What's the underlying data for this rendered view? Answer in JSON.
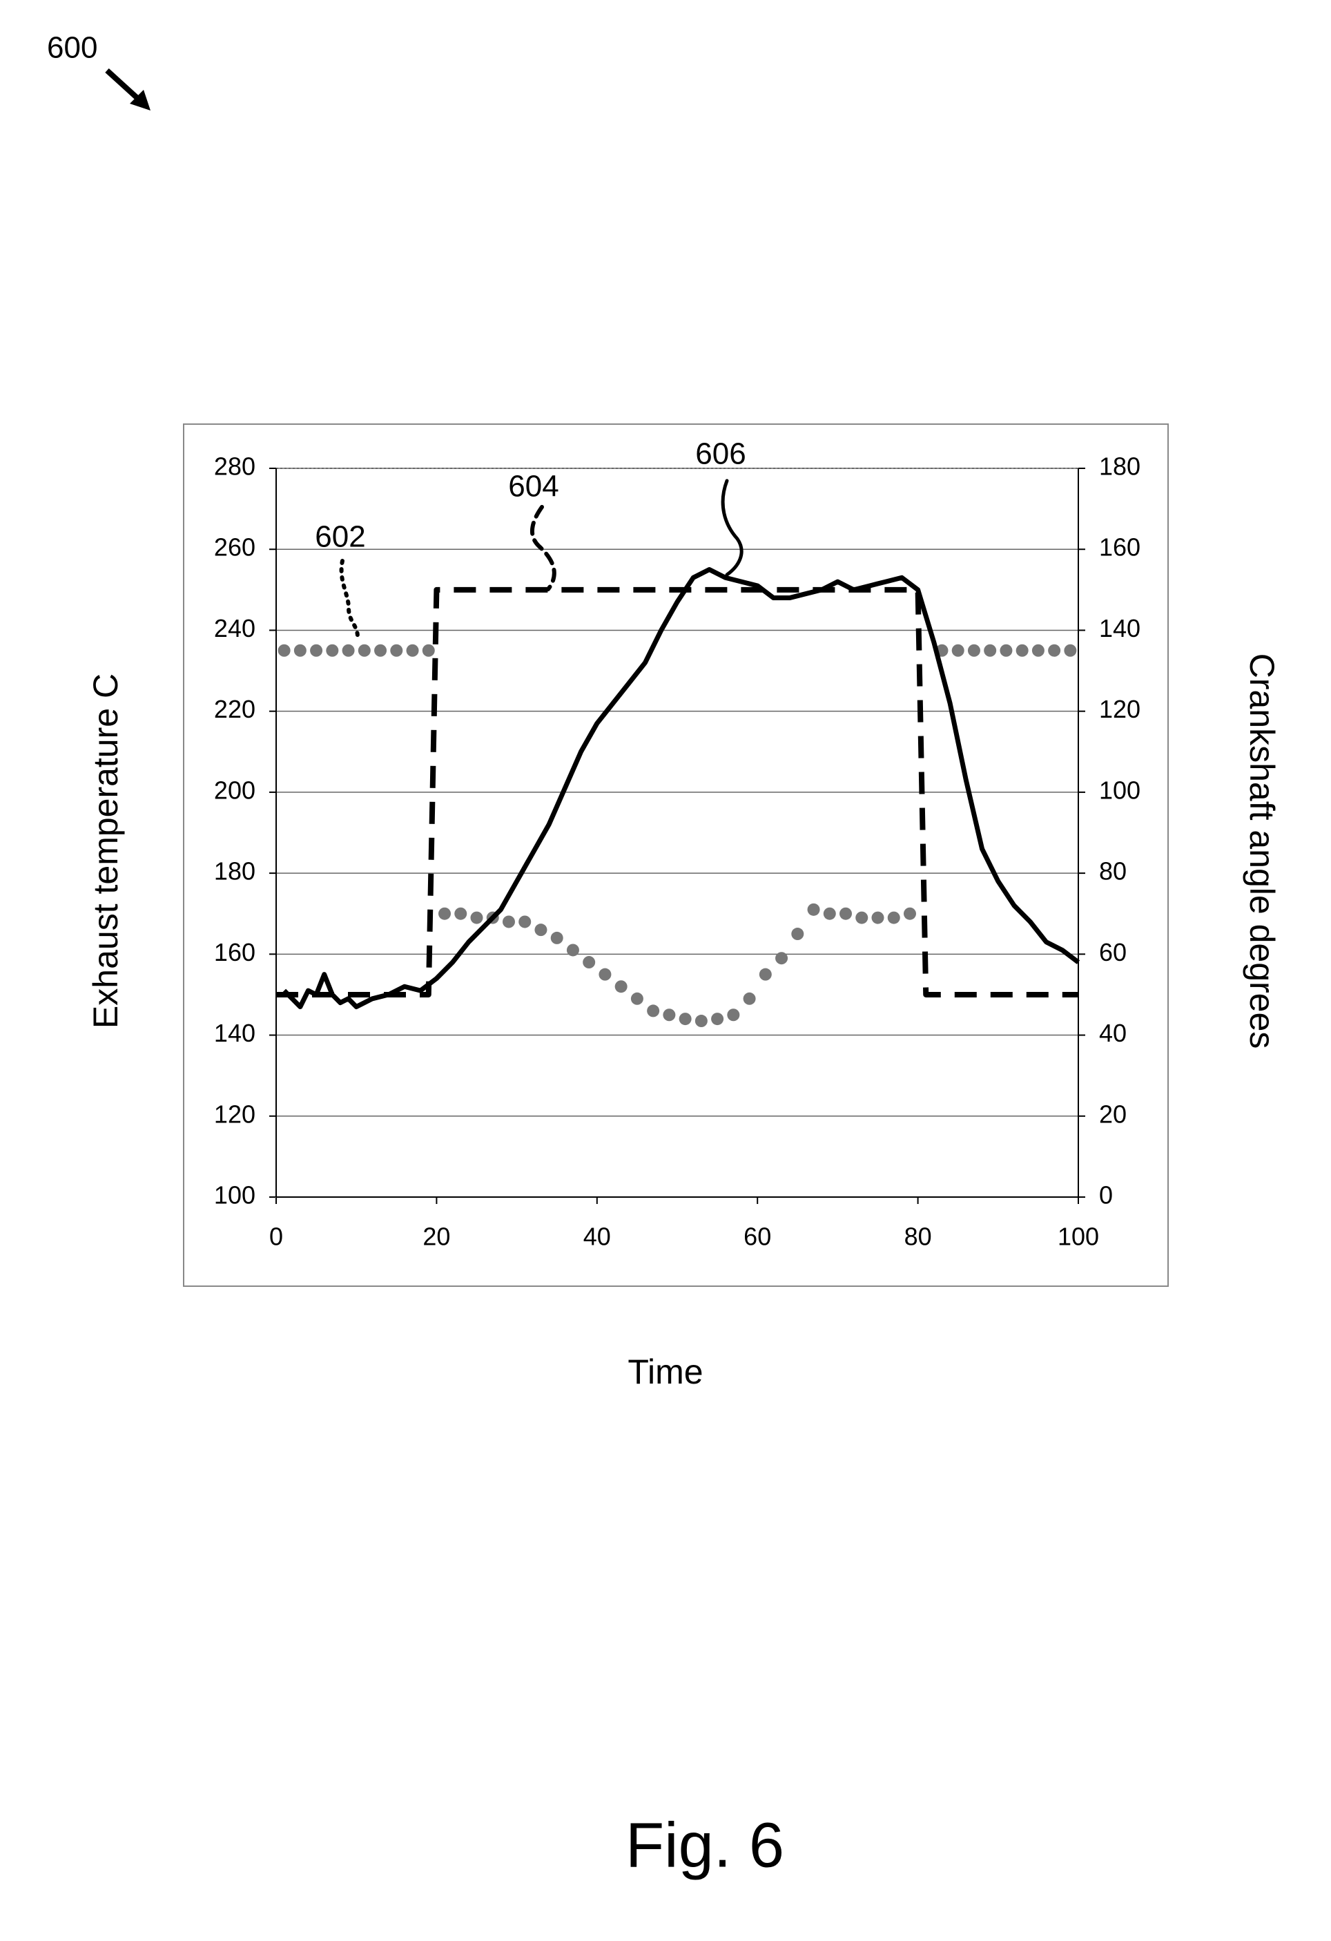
{
  "chart_data": {
    "type": "line",
    "figure_ref": "600",
    "caption": "Fig. 6",
    "xlabel": "Time",
    "ylabel": "Exhaust temperature C",
    "y2label": "Crankshaft angle degrees",
    "xlim": [
      0,
      100
    ],
    "xticks": [
      0,
      20,
      40,
      60,
      80,
      100
    ],
    "ylim": [
      100,
      280
    ],
    "yticks": [
      100,
      120,
      140,
      160,
      180,
      200,
      220,
      240,
      260,
      280
    ],
    "y2lim": [
      0,
      180
    ],
    "y2ticks": [
      0,
      20,
      40,
      60,
      80,
      100,
      120,
      140,
      160,
      180
    ],
    "grid": true,
    "series": [
      {
        "name": "602",
        "style": "dots",
        "color": "#777777",
        "axis": "y2",
        "x": [
          1,
          3,
          5,
          7,
          9,
          11,
          13,
          15,
          17,
          19,
          21,
          23,
          25,
          27,
          29,
          31,
          33,
          35,
          37,
          39,
          41,
          43,
          45,
          47,
          49,
          51,
          53,
          55,
          57,
          59,
          61,
          63,
          65,
          67,
          69,
          71,
          73,
          75,
          77,
          79,
          83,
          85,
          87,
          89,
          91,
          93,
          95,
          97,
          99
        ],
        "values": [
          135,
          135,
          135,
          135,
          135,
          135,
          135,
          135,
          135,
          135,
          70,
          70,
          69,
          69,
          68,
          68,
          66,
          64,
          61,
          58,
          55,
          52,
          49,
          46,
          45,
          44,
          43.5,
          44,
          45,
          49,
          55,
          59,
          65,
          71,
          70,
          70,
          69,
          69,
          69,
          70,
          135,
          135,
          135,
          135,
          135,
          135,
          135,
          135,
          135
        ]
      },
      {
        "name": "604",
        "style": "dashed",
        "color": "#000000",
        "axis": "y2",
        "x": [
          0,
          19,
          20,
          80,
          81,
          100
        ],
        "values": [
          50,
          50,
          150,
          150,
          50,
          50
        ]
      },
      {
        "name": "606",
        "style": "solid",
        "color": "#000000",
        "x": [
          1,
          2,
          3,
          4,
          5,
          6,
          7,
          8,
          9,
          10,
          12,
          14,
          16,
          18,
          20,
          22,
          24,
          26,
          28,
          30,
          32,
          34,
          36,
          38,
          40,
          42,
          44,
          46,
          48,
          50,
          52,
          54,
          56,
          58,
          60,
          62,
          64,
          66,
          68,
          70,
          72,
          74,
          76,
          78,
          80,
          82,
          84,
          86,
          88,
          90,
          92,
          94,
          96,
          98,
          100
        ],
        "values": [
          151,
          149,
          147,
          151,
          150,
          155,
          150,
          148,
          149,
          147,
          149,
          150,
          152,
          151,
          154,
          158,
          163,
          167,
          171,
          178,
          185,
          192,
          201,
          210,
          217,
          222,
          227,
          232,
          240,
          247,
          253,
          255,
          253,
          252,
          251,
          248,
          248,
          249,
          250,
          252,
          250,
          251,
          252,
          253,
          250,
          237,
          222,
          203,
          186,
          178,
          172,
          168,
          163,
          161,
          158
        ]
      }
    ]
  }
}
